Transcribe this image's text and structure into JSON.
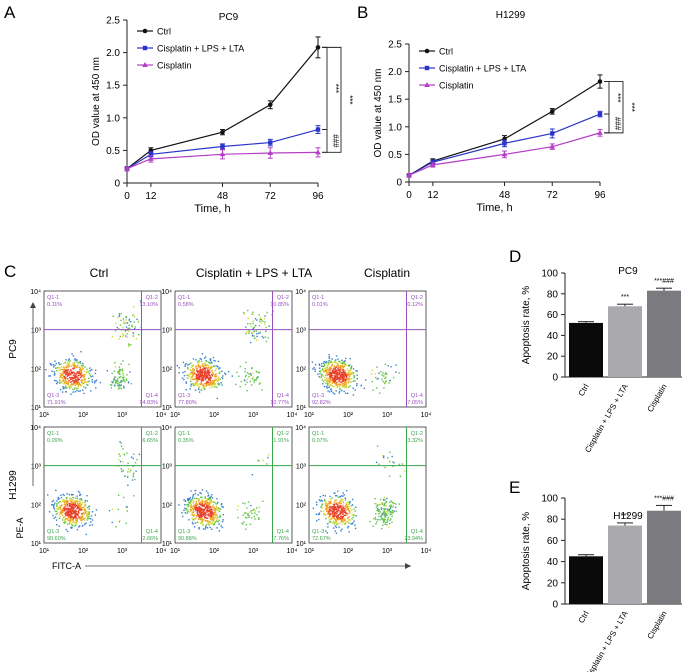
{
  "panel_letters": {
    "a": "A",
    "b": "B",
    "c": "C",
    "d": "D",
    "e": "E"
  },
  "colors": {
    "ctrl": "#111111",
    "combo": "#2b35c9",
    "cis": "#b33fc4",
    "bar_ctrl": "#0a0a0a",
    "bar_combo": "#a9a9ae",
    "bar_cis": "#7b7b7f",
    "flow_pc9": "#9a4fc0",
    "flow_h1299": "#3aa64a"
  },
  "chart_data": [
    {
      "id": "A",
      "type": "line",
      "title": "PC9",
      "xlabel": "Time, h",
      "ylabel": "OD value at 450 nm",
      "x": [
        0,
        12,
        48,
        72,
        96
      ],
      "xticks": [
        "0",
        "12",
        "48",
        "72",
        "96"
      ],
      "ylim": [
        0,
        2.5
      ],
      "yticks": [
        "0",
        "0.5",
        "1.0",
        "1.5",
        "2.0",
        "2.5"
      ],
      "legend": [
        "Ctrl",
        "Cisplatin + LPS + LTA",
        "Cisplatin"
      ],
      "series": [
        {
          "name": "Ctrl",
          "values": [
            0.22,
            0.5,
            0.78,
            1.2,
            2.08
          ],
          "errors": [
            0.03,
            0.04,
            0.04,
            0.06,
            0.16
          ]
        },
        {
          "name": "Cisplatin + LPS + LTA",
          "values": [
            0.22,
            0.44,
            0.56,
            0.62,
            0.82
          ],
          "errors": [
            0.03,
            0.04,
            0.04,
            0.05,
            0.06
          ]
        },
        {
          "name": "Cisplatin",
          "values": [
            0.22,
            0.37,
            0.44,
            0.46,
            0.47
          ],
          "errors": [
            0.03,
            0.05,
            0.07,
            0.08,
            0.07
          ]
        }
      ],
      "sig": [
        {
          "from": "Ctrl",
          "to": "Cisplatin + LPS + LTA",
          "label": "***"
        },
        {
          "from": "Cisplatin + LPS + LTA",
          "to": "Cisplatin",
          "label": "###"
        },
        {
          "from": "Ctrl",
          "to": "Cisplatin",
          "label": "***"
        }
      ]
    },
    {
      "id": "B",
      "type": "line",
      "title": "H1299",
      "xlabel": "Time, h",
      "ylabel": "OD value at 450 nm",
      "x": [
        0,
        12,
        48,
        72,
        96
      ],
      "xticks": [
        "0",
        "12",
        "48",
        "72",
        "96"
      ],
      "ylim": [
        0,
        2.5
      ],
      "yticks": [
        "0",
        "0.5",
        "1.0",
        "1.5",
        "2.0",
        "2.5"
      ],
      "legend": [
        "Ctrl",
        "Cisplatin + LPS + LTA",
        "Cisplatin"
      ],
      "series": [
        {
          "name": "Ctrl",
          "values": [
            0.12,
            0.38,
            0.78,
            1.28,
            1.82
          ],
          "errors": [
            0.03,
            0.04,
            0.06,
            0.05,
            0.12
          ]
        },
        {
          "name": "Cisplatin + LPS + LTA",
          "values": [
            0.12,
            0.36,
            0.7,
            0.88,
            1.23
          ],
          "errors": [
            0.03,
            0.04,
            0.06,
            0.08,
            0.05
          ]
        },
        {
          "name": "Cisplatin",
          "values": [
            0.12,
            0.31,
            0.5,
            0.64,
            0.89
          ],
          "errors": [
            0.03,
            0.04,
            0.06,
            0.05,
            0.06
          ]
        }
      ],
      "sig": [
        {
          "from": "Ctrl",
          "to": "Cisplatin + LPS + LTA",
          "label": "***"
        },
        {
          "from": "Cisplatin + LPS + LTA",
          "to": "Cisplatin",
          "label": "###"
        },
        {
          "from": "Ctrl",
          "to": "Cisplatin",
          "label": "***"
        }
      ]
    },
    {
      "id": "D",
      "type": "bar",
      "title": "PC9",
      "ylabel": "Apoptosis rate, %",
      "categories": [
        "Ctrl",
        "Cisplatin + LPS + LTA",
        "Cisplatin"
      ],
      "values": [
        52,
        68,
        83
      ],
      "errors": [
        1.2,
        2.0,
        2.4
      ],
      "annotations": [
        "",
        "***",
        "***###"
      ],
      "ylim": [
        0,
        100
      ],
      "yticks": [
        "0",
        "20",
        "40",
        "60",
        "80",
        "100"
      ]
    },
    {
      "id": "E",
      "type": "bar",
      "title": "H1299",
      "ylabel": "Apoptosis rate, %",
      "categories": [
        "Ctrl",
        "Cisplatin + LPS + LTA",
        "Cisplatin"
      ],
      "values": [
        45,
        74,
        88
      ],
      "errors": [
        1.5,
        2.5,
        5.0
      ],
      "annotations": [
        "",
        "***",
        "***###"
      ],
      "ylim": [
        0,
        100
      ],
      "yticks": [
        "0",
        "20",
        "40",
        "60",
        "80",
        "100"
      ]
    },
    {
      "id": "C",
      "type": "scatter",
      "subtype": "flow-cytometry",
      "columns": [
        "Ctrl",
        "Cisplatin + LPS + LTA",
        "Cisplatin"
      ],
      "rows": [
        "PC9",
        "H1299"
      ],
      "xlabel": "FITC-A",
      "ylabel": "PE-A",
      "ticks": [
        "10¹",
        "10²",
        "10³",
        "10⁴"
      ],
      "gate_decades": [
        2.5,
        2.0
      ],
      "quadrants": [
        [
          {
            "q1": "Q1-1",
            "v1": "0.11%",
            "q2": "Q1-2",
            "v2": "13.10%",
            "q3": "Q1-3",
            "v3": "71.91%",
            "q4": "Q1-4",
            "v4": "14.83%"
          },
          {
            "q1": "Q1-1",
            "v1": "0.58%",
            "q2": "Q1-2",
            "v2": "10.85%",
            "q3": "Q1-3",
            "v3": "77.80%",
            "q4": "Q1-4",
            "v4": "10.77%"
          },
          {
            "q1": "Q1-1",
            "v1": "0.01%",
            "q2": "Q1-2",
            "v2": "0.12%",
            "q3": "Q1-3",
            "v3": "92.82%",
            "q4": "Q1-4",
            "v4": "7.05%"
          }
        ],
        [
          {
            "q1": "Q1-1",
            "v1": "0.09%",
            "q2": "Q1-2",
            "v2": "6.65%",
            "q3": "Q1-3",
            "v3": "90.60%",
            "q4": "Q1-4",
            "v4": "2.66%"
          },
          {
            "q1": "Q1-1",
            "v1": "0.35%",
            "q2": "Q1-2",
            "v2": "1.91%",
            "q3": "Q1-3",
            "v3": "90.88%",
            "q4": "Q1-4",
            "v4": "7.76%"
          },
          {
            "q1": "Q1-1",
            "v1": "0.07%",
            "q2": "Q1-2",
            "v2": "3.32%",
            "q3": "Q1-3",
            "v3": "72.67%",
            "q4": "Q1-4",
            "v4": "23.94%"
          }
        ]
      ]
    }
  ]
}
